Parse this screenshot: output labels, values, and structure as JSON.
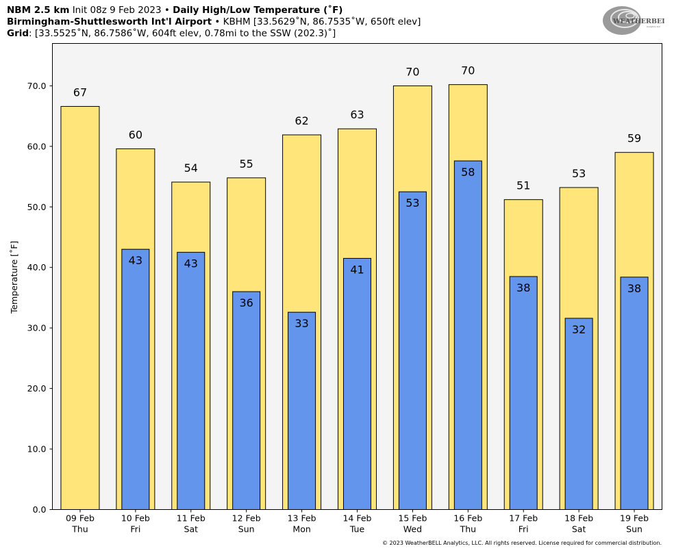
{
  "header": {
    "line1": {
      "model": "NBM 2.5 km",
      "init": "Init 08z 9 Feb 2023",
      "product": "Daily High/Low Temperature (˚F)"
    },
    "line2": {
      "station": "Birmingham-Shuttlesworth Int'l Airport",
      "details": "KBHM [33.5629˚N, 86.7535˚W, 650ft elev]"
    },
    "line3": {
      "label": "Grid",
      "details": ": [33.5525˚N, 86.7586˚W, 604ft elev, 0.78mi to the SSW (202.3)˚]"
    }
  },
  "logo": {
    "text": "WEATHERBELL",
    "subtext": "Analytics LLC"
  },
  "copyright": "© 2023 WeatherBELL Analytics, LLC. All rights reserved. License required for commercial distribution.",
  "colors": {
    "high_bar": "#FFE57A",
    "low_bar": "#6495ED",
    "plot_bg": "#F4F4F4"
  },
  "chart_data": {
    "type": "bar",
    "ylabel": "Temperature [˚F]",
    "ylim": [
      0,
      77
    ],
    "yticks": [
      "0.0",
      "10.0",
      "20.0",
      "30.0",
      "40.0",
      "50.0",
      "60.0",
      "70.0"
    ],
    "grid": false,
    "categories": [
      {
        "date": "09 Feb",
        "day": "Thu"
      },
      {
        "date": "10 Feb",
        "day": "Fri"
      },
      {
        "date": "11 Feb",
        "day": "Sat"
      },
      {
        "date": "12 Feb",
        "day": "Sun"
      },
      {
        "date": "13 Feb",
        "day": "Mon"
      },
      {
        "date": "14 Feb",
        "day": "Tue"
      },
      {
        "date": "15 Feb",
        "day": "Wed"
      },
      {
        "date": "16 Feb",
        "day": "Thu"
      },
      {
        "date": "17 Feb",
        "day": "Fri"
      },
      {
        "date": "18 Feb",
        "day": "Sat"
      },
      {
        "date": "19 Feb",
        "day": "Sun"
      }
    ],
    "series": [
      {
        "values": [
          66.6,
          59.6,
          54.1,
          54.8,
          61.9,
          62.9,
          70.0,
          70.2,
          51.2,
          53.2,
          59.0
        ],
        "labels": [
          "67",
          "60",
          "54",
          "55",
          "62",
          "63",
          "70",
          "70",
          "51",
          "53",
          "59"
        ]
      },
      {
        "values": [
          null,
          43.0,
          42.5,
          36.0,
          32.6,
          41.5,
          52.5,
          57.6,
          38.5,
          31.6,
          38.4
        ],
        "labels": [
          "",
          "43",
          "43",
          "36",
          "33",
          "41",
          "53",
          "58",
          "38",
          "32",
          "38"
        ]
      }
    ]
  }
}
